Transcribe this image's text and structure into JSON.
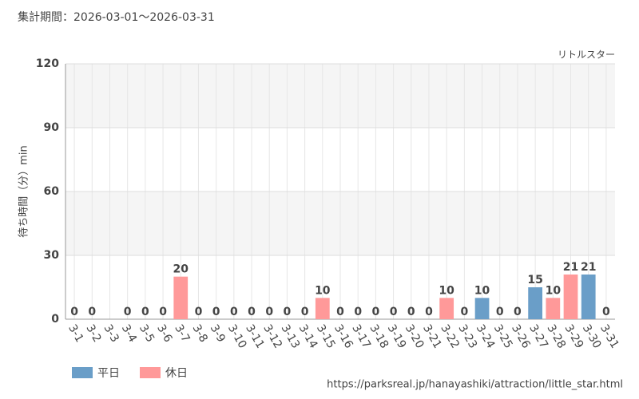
{
  "chart_data": {
    "type": "bar",
    "title": "集計期間：2026-03-01～2026-03-31",
    "annotation": "リトルスター",
    "y_label": "待ち時間（分）min",
    "source": "https://parksreal.jp/hanayashiki/attraction/little_star.html",
    "categories": [
      "3-1",
      "3-2",
      "3-3",
      "3-4",
      "3-5",
      "3-6",
      "3-7",
      "3-8",
      "3-9",
      "3-10",
      "3-11",
      "3-12",
      "3-13",
      "3-14",
      "3-15",
      "3-16",
      "3-17",
      "3-18",
      "3-19",
      "3-20",
      "3-21",
      "3-22",
      "3-23",
      "3-24",
      "3-25",
      "3-26",
      "3-27",
      "3-28",
      "3-29",
      "3-30",
      "3-31"
    ],
    "series": [
      {
        "name": "平日",
        "color": "#6a9ec8",
        "values": [
          null,
          0,
          null,
          0,
          0,
          0,
          null,
          null,
          0,
          0,
          0,
          0,
          0,
          null,
          null,
          0,
          0,
          0,
          0,
          null,
          null,
          null,
          0,
          10,
          0,
          0,
          15,
          null,
          null,
          21,
          0
        ]
      },
      {
        "name": "休日",
        "color": "#ff9999",
        "values": [
          0,
          null,
          null,
          null,
          null,
          null,
          20,
          0,
          null,
          null,
          null,
          null,
          null,
          0,
          10,
          null,
          null,
          null,
          null,
          0,
          0,
          10,
          null,
          null,
          null,
          null,
          null,
          10,
          21,
          null,
          null
        ]
      }
    ],
    "ylim": [
      0,
      120
    ],
    "yticks": [
      0,
      30,
      60,
      90,
      120
    ],
    "grid": true,
    "legend": "bottom-left"
  }
}
